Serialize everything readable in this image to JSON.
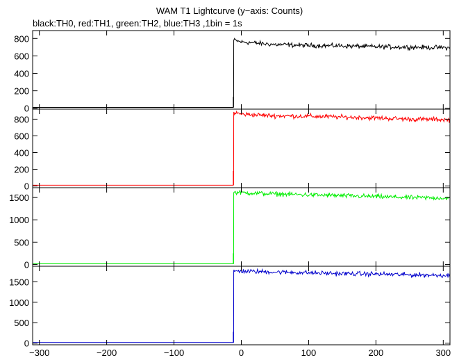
{
  "chart_data": {
    "type": "line",
    "title": "WAM T1 Lightcurve (y−axis: Counts)",
    "subtitle": "black:TH0, red:TH1, green:TH2, blue:TH3 ,1bin = 1s",
    "xlim": [
      -310,
      310
    ],
    "x_ticks": [
      -300,
      -200,
      -100,
      0,
      100,
      200,
      300
    ],
    "x_tick_labels": [
      "−300",
      "−200",
      "−100",
      "0",
      "100",
      "200",
      "300"
    ],
    "grid": false,
    "panels": [
      {
        "series": "TH0",
        "color": "#000000",
        "ylim": [
          -10,
          890
        ],
        "y_ticks": [
          0,
          200,
          400,
          600,
          800
        ],
        "y_tick_labels": [
          "0",
          "200",
          "400",
          "600",
          "800"
        ],
        "pre_level": 10,
        "spike": 130,
        "onset_x": -12,
        "x": [
          -11,
          0,
          50,
          100,
          150,
          200,
          250,
          300,
          310
        ],
        "y": [
          780,
          760,
          730,
          720,
          715,
          705,
          700,
          695,
          690
        ]
      },
      {
        "series": "TH1",
        "color": "#ff0000",
        "ylim": [
          -20,
          920
        ],
        "y_ticks": [
          0,
          200,
          400,
          600,
          800
        ],
        "y_tick_labels": [
          "0",
          "200",
          "400",
          "600",
          "800"
        ],
        "pre_level": 10,
        "spike": 180,
        "onset_x": -12,
        "x": [
          -11,
          0,
          50,
          100,
          150,
          200,
          250,
          300,
          310
        ],
        "y": [
          880,
          860,
          840,
          835,
          825,
          815,
          800,
          795,
          790
        ]
      },
      {
        "series": "TH2",
        "color": "#00ee00",
        "ylim": [
          -40,
          1720
        ],
        "y_ticks": [
          0,
          500,
          1000,
          1500
        ],
        "y_tick_labels": [
          "0",
          "500",
          "1000",
          "1500"
        ],
        "pre_level": 15,
        "spike": 250,
        "onset_x": -12,
        "x": [
          -11,
          0,
          50,
          100,
          150,
          200,
          250,
          300,
          310
        ],
        "y": [
          1620,
          1610,
          1580,
          1560,
          1540,
          1520,
          1500,
          1490,
          1480
        ]
      },
      {
        "series": "TH3",
        "color": "#0000cc",
        "ylim": [
          -40,
          1880
        ],
        "y_ticks": [
          0,
          500,
          1000,
          1500
        ],
        "y_tick_labels": [
          "0",
          "500",
          "1000",
          "1500"
        ],
        "pre_level": 15,
        "spike": 280,
        "onset_x": -12,
        "x": [
          -11,
          0,
          50,
          100,
          150,
          200,
          250,
          300,
          310
        ],
        "y": [
          1760,
          1760,
          1740,
          1720,
          1700,
          1690,
          1670,
          1660,
          1650
        ]
      }
    ]
  }
}
